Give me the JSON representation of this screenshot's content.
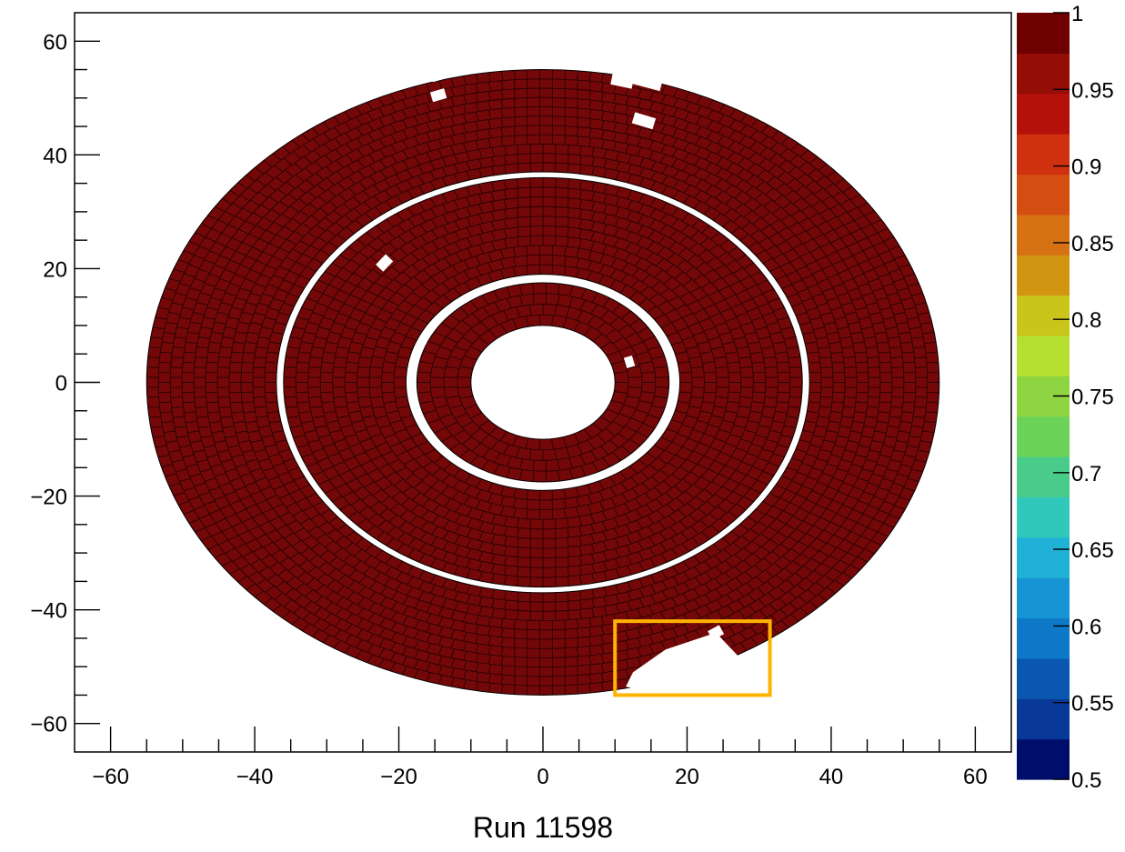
{
  "chart_data": {
    "type": "heatmap",
    "title": "",
    "xlabel": "Run 11598",
    "ylabel": "",
    "xlim": [
      -65,
      65
    ],
    "ylim": [
      -65,
      65
    ],
    "x_ticks": [
      -60,
      -40,
      -20,
      0,
      20,
      40,
      60
    ],
    "x_tick_labels": [
      "−60",
      "−40",
      "−20",
      "0",
      "20",
      "40",
      "60"
    ],
    "y_ticks": [
      60,
      40,
      20,
      0,
      -20,
      -40,
      -60
    ],
    "y_tick_labels": [
      "60",
      "40",
      "20",
      "0",
      "−20",
      "−40",
      "−60"
    ],
    "grid": false,
    "colorbar": {
      "min": 0.5,
      "max": 1.0,
      "tick_values": [
        1,
        0.95,
        0.9,
        0.85,
        0.8,
        0.75,
        0.7,
        0.65,
        0.6,
        0.55,
        0.5
      ],
      "tick_labels": [
        "1",
        "0.95",
        "0.9",
        "0.85",
        "0.8",
        "0.75",
        "0.7",
        "0.65",
        "0.6",
        "0.55",
        "0.5"
      ],
      "colors": [
        "#000d6b",
        "#083898",
        "#0a57b0",
        "#0e78c8",
        "#1694d4",
        "#1fb2d6",
        "#2fc8bb",
        "#49cc8a",
        "#6bd25a",
        "#8fd542",
        "#b5e030",
        "#cac51a",
        "#d19512",
        "#d67114",
        "#d34e10",
        "#cf300d",
        "#b5110a",
        "#940d07",
        "#6e0000"
      ]
    },
    "rings": [
      {
        "name": "inner",
        "r_inner": 10,
        "r_outer": 17.5
      },
      {
        "name": "middle",
        "r_inner": 19,
        "r_outer": 36
      },
      {
        "name": "outer",
        "r_inner": 37,
        "r_outer": 55
      }
    ],
    "cell_value": 1.0,
    "cell_color": "#740808",
    "missing_cells": [
      {
        "x": 14,
        "y": 53,
        "w": 5,
        "h": 2
      },
      {
        "x": 11,
        "y": 53,
        "w": 3,
        "h": 2
      },
      {
        "x": 14,
        "y": 46,
        "w": 3,
        "h": 2
      },
      {
        "x": -14.5,
        "y": 54,
        "w": 2,
        "h": 1.8
      },
      {
        "x": -14.5,
        "y": 50.5,
        "w": 2,
        "h": 1.8
      },
      {
        "x": -22,
        "y": 21,
        "w": 2,
        "h": 1.8
      },
      {
        "x": 12,
        "y": 3.6,
        "w": 1.5,
        "h": 1.5
      },
      {
        "x": 24,
        "y": -44,
        "w": 1.8,
        "h": 1.8
      }
    ],
    "missing_region_polygon": [
      [
        12.5,
        -51
      ],
      [
        11.5,
        -53.5
      ],
      [
        17,
        -55
      ],
      [
        30,
        -50
      ],
      [
        27,
        -48
      ],
      [
        24,
        -44
      ],
      [
        17,
        -47
      ]
    ],
    "highlight_box": {
      "x0": 10,
      "x1": 31.5,
      "y0": -55,
      "y1": -42,
      "color": "#ffb300"
    }
  }
}
